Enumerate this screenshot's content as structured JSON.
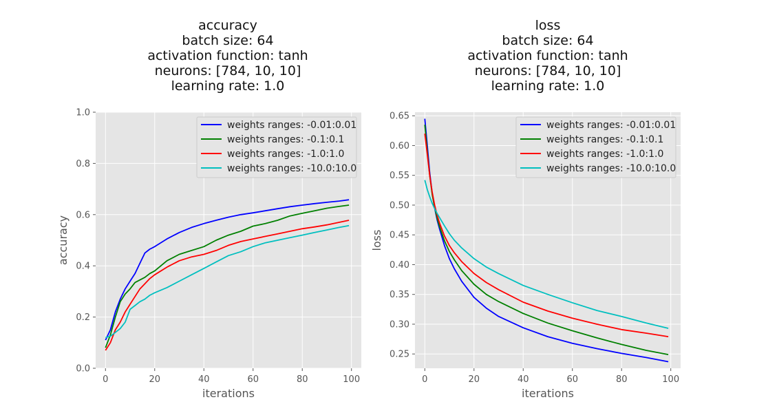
{
  "chart_data": [
    {
      "type": "line",
      "title_lines": [
        "accuracy",
        "batch size: 64",
        "activation function: tanh",
        "neurons: [784, 10, 10]",
        "learning rate: 1.0"
      ],
      "xlabel": "iterations",
      "ylabel": "accuracy",
      "xlim": [
        -4,
        104
      ],
      "ylim": [
        0.0,
        1.0
      ],
      "xticks": [
        0,
        20,
        40,
        60,
        80,
        100
      ],
      "yticks": [
        0.0,
        0.2,
        0.4,
        0.6,
        0.8,
        1.0
      ],
      "ytick_labels": [
        "0.0",
        "0.2",
        "0.4",
        "0.6",
        "0.8",
        "1.0"
      ],
      "grid": true,
      "legend_position": "upper-right",
      "x": [
        0,
        2,
        4,
        6,
        8,
        10,
        12,
        14,
        15,
        16,
        18,
        20,
        25,
        30,
        35,
        40,
        45,
        50,
        55,
        60,
        65,
        70,
        75,
        80,
        85,
        90,
        95,
        99
      ],
      "series": [
        {
          "name": "weights ranges: -0.01:0.01",
          "color": "#0000ff",
          "values": [
            0.11,
            0.15,
            0.22,
            0.27,
            0.31,
            0.34,
            0.37,
            0.41,
            0.43,
            0.45,
            0.465,
            0.475,
            0.505,
            0.53,
            0.55,
            0.565,
            0.578,
            0.59,
            0.6,
            0.607,
            0.615,
            0.623,
            0.631,
            0.637,
            0.643,
            0.648,
            0.653,
            0.658
          ]
        },
        {
          "name": "weights ranges: -0.1:0.1",
          "color": "#008000",
          "values": [
            0.08,
            0.13,
            0.2,
            0.26,
            0.29,
            0.31,
            0.335,
            0.345,
            0.35,
            0.355,
            0.37,
            0.38,
            0.42,
            0.445,
            0.46,
            0.475,
            0.5,
            0.52,
            0.535,
            0.555,
            0.565,
            0.578,
            0.595,
            0.605,
            0.615,
            0.625,
            0.632,
            0.637
          ]
        },
        {
          "name": "weights ranges: -1.0:1.0",
          "color": "#ff0000",
          "values": [
            0.07,
            0.1,
            0.15,
            0.18,
            0.22,
            0.25,
            0.28,
            0.31,
            0.32,
            0.33,
            0.35,
            0.365,
            0.395,
            0.42,
            0.435,
            0.445,
            0.46,
            0.48,
            0.495,
            0.505,
            0.515,
            0.525,
            0.535,
            0.545,
            0.552,
            0.56,
            0.57,
            0.578
          ]
        },
        {
          "name": "weights ranges: -10.0:10.0",
          "color": "#00bfbf",
          "values": [
            0.12,
            0.125,
            0.14,
            0.155,
            0.18,
            0.23,
            0.245,
            0.26,
            0.265,
            0.27,
            0.285,
            0.295,
            0.315,
            0.34,
            0.365,
            0.39,
            0.415,
            0.44,
            0.455,
            0.475,
            0.49,
            0.5,
            0.51,
            0.52,
            0.53,
            0.54,
            0.55,
            0.557
          ]
        }
      ]
    },
    {
      "type": "line",
      "title_lines": [
        "loss",
        "batch size: 64",
        "activation function: tanh",
        "neurons: [784, 10, 10]",
        "learning rate: 1.0"
      ],
      "xlabel": "iterations",
      "ylabel": "loss",
      "xlim": [
        -4,
        104
      ],
      "ylim": [
        0.226,
        0.656
      ],
      "xticks": [
        0,
        20,
        40,
        60,
        80,
        100
      ],
      "yticks": [
        0.25,
        0.3,
        0.35,
        0.4,
        0.45,
        0.5,
        0.55,
        0.6,
        0.65
      ],
      "ytick_labels": [
        "0.25",
        "0.30",
        "0.35",
        "0.40",
        "0.45",
        "0.50",
        "0.55",
        "0.60",
        "0.65"
      ],
      "grid": true,
      "legend_position": "upper-right",
      "x": [
        0,
        1,
        2,
        3,
        4,
        5,
        6,
        8,
        10,
        12,
        15,
        20,
        25,
        30,
        40,
        50,
        60,
        70,
        80,
        90,
        99
      ],
      "series": [
        {
          "name": "weights ranges: -0.01:0.01",
          "color": "#0000ff",
          "values": [
            0.645,
            0.6,
            0.555,
            0.52,
            0.495,
            0.475,
            0.46,
            0.432,
            0.41,
            0.393,
            0.372,
            0.345,
            0.327,
            0.313,
            0.294,
            0.279,
            0.268,
            0.259,
            0.251,
            0.244,
            0.237
          ]
        },
        {
          "name": "weights ranges: -0.1:0.1",
          "color": "#008000",
          "values": [
            0.635,
            0.59,
            0.55,
            0.518,
            0.496,
            0.478,
            0.464,
            0.44,
            0.422,
            0.408,
            0.39,
            0.367,
            0.35,
            0.338,
            0.318,
            0.302,
            0.289,
            0.277,
            0.266,
            0.256,
            0.249
          ]
        },
        {
          "name": "weights ranges: -1.0:1.0",
          "color": "#ff0000",
          "values": [
            0.62,
            0.585,
            0.55,
            0.522,
            0.5,
            0.483,
            0.47,
            0.448,
            0.432,
            0.42,
            0.405,
            0.385,
            0.37,
            0.358,
            0.337,
            0.322,
            0.31,
            0.3,
            0.291,
            0.285,
            0.279
          ]
        },
        {
          "name": "weights ranges: -10.0:10.0",
          "color": "#00bfbf",
          "values": [
            0.542,
            0.526,
            0.514,
            0.503,
            0.494,
            0.486,
            0.479,
            0.465,
            0.452,
            0.441,
            0.428,
            0.41,
            0.396,
            0.385,
            0.365,
            0.35,
            0.336,
            0.323,
            0.313,
            0.302,
            0.293
          ]
        }
      ]
    }
  ]
}
